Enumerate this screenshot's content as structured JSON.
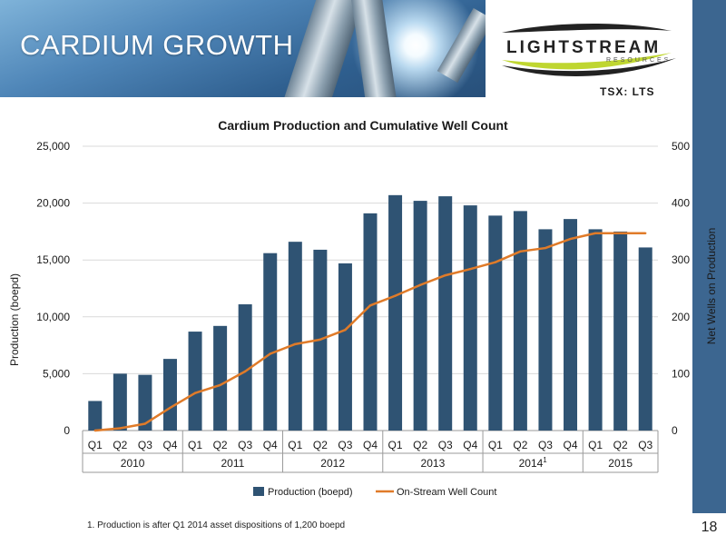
{
  "header": {
    "title": "CARDIUM GROWTH",
    "logo_text": "LIGHTSTREAM",
    "logo_subtext": "RESOURCES",
    "ticker": "TSX: LTS"
  },
  "footnote": "1.    Production is after Q1 2014 asset dispositions of 1,200 boepd",
  "page_number": "18",
  "colors": {
    "brand_blue": "#3c6690",
    "bar": "#2f5373",
    "line": "#e07b29",
    "logo_accent": "#bfd630"
  },
  "chart_data": {
    "type": "bar",
    "title": "Cardium Production and Cumulative Well Count",
    "ylabel": "Production (boepd)",
    "y2label": "Net Wells on Production",
    "ylim": [
      0,
      25000
    ],
    "y2lim": [
      0,
      500
    ],
    "yticks": [
      "25,000",
      "20,000",
      "15,000",
      "10,000",
      "5,000",
      "0"
    ],
    "y2ticks": [
      "500",
      "400",
      "300",
      "200",
      "100",
      "0"
    ],
    "categories": [
      "Q1",
      "Q2",
      "Q3",
      "Q4",
      "Q1",
      "Q2",
      "Q3",
      "Q4",
      "Q1",
      "Q2",
      "Q3",
      "Q4",
      "Q1",
      "Q2",
      "Q3",
      "Q4",
      "Q1",
      "Q2",
      "Q3",
      "Q4",
      "Q1",
      "Q2",
      "Q3"
    ],
    "year_groups": [
      {
        "label": "2010",
        "sup": "",
        "count": 4
      },
      {
        "label": "2011",
        "sup": "",
        "count": 4
      },
      {
        "label": "2012",
        "sup": "",
        "count": 4
      },
      {
        "label": "2013",
        "sup": "",
        "count": 4
      },
      {
        "label": "2014",
        "sup": "1",
        "count": 4
      },
      {
        "label": "2015",
        "sup": "",
        "count": 3
      }
    ],
    "series": [
      {
        "name": "Production (boepd)",
        "type": "bar",
        "axis": "left",
        "values": [
          2600,
          5000,
          4900,
          6300,
          8700,
          9200,
          11100,
          15600,
          16600,
          15900,
          14700,
          19100,
          20700,
          20200,
          20600,
          19800,
          18900,
          19300,
          17700,
          18600,
          17700,
          17500,
          16100
        ]
      },
      {
        "name": "On-Stream Well Count",
        "type": "line",
        "axis": "right",
        "values": [
          0,
          4,
          12,
          40,
          66,
          80,
          104,
          135,
          152,
          160,
          177,
          220,
          237,
          256,
          273,
          284,
          296,
          315,
          321,
          337,
          347,
          347,
          347
        ]
      }
    ],
    "legend_position": "bottom",
    "grid": true
  }
}
